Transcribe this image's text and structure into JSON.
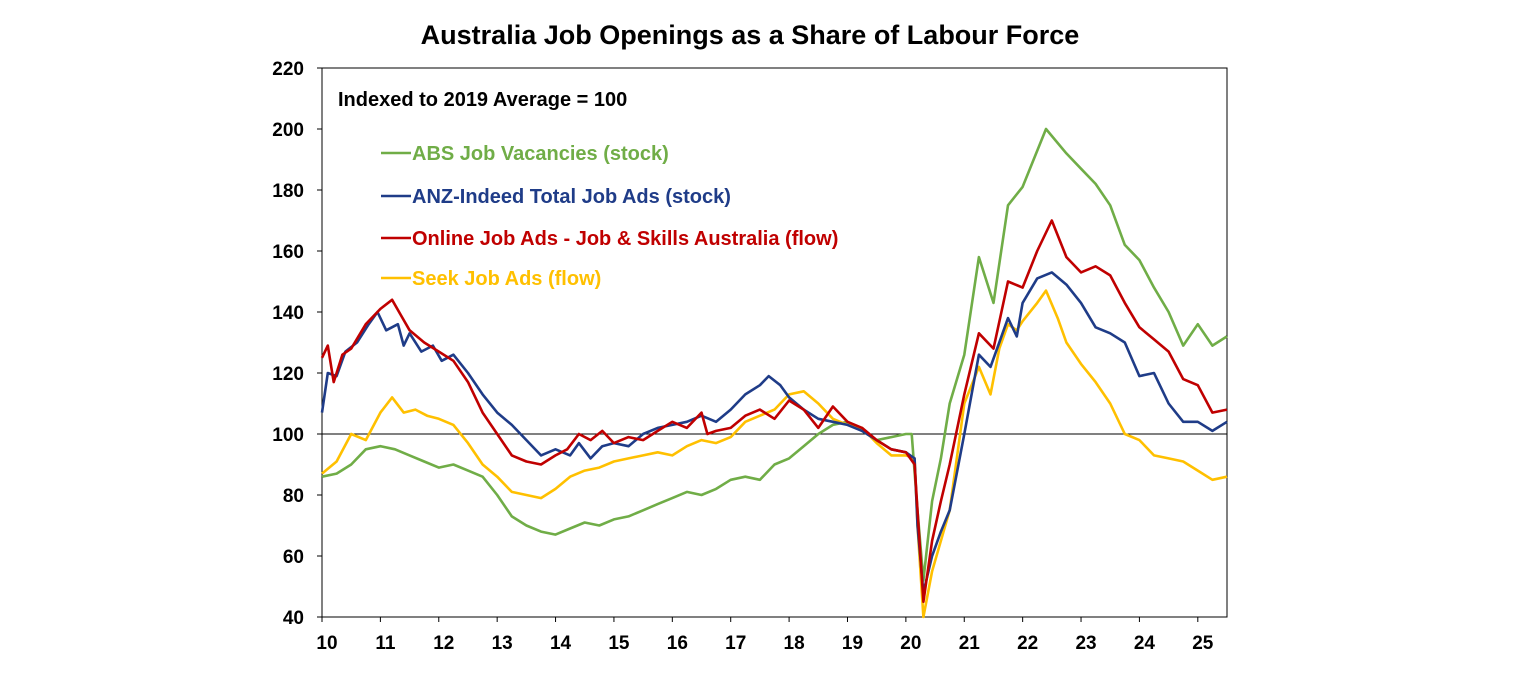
{
  "chart_data": {
    "type": "line",
    "title": "Australia Job Openings as a Share of Labour Force",
    "subtitle": "Indexed to 2019 Average = 100",
    "xlabel": "",
    "ylabel": "",
    "xlim": [
      10,
      25.5
    ],
    "ylim": [
      40,
      220
    ],
    "x_ticks": [
      "10",
      "11",
      "12",
      "13",
      "14",
      "15",
      "16",
      "17",
      "18",
      "19",
      "20",
      "21",
      "22",
      "23",
      "24",
      "25"
    ],
    "y_ticks": [
      "40",
      "60",
      "80",
      "100",
      "120",
      "140",
      "160",
      "180",
      "200",
      "220"
    ],
    "reference_line": 100,
    "grid": false,
    "legend_position": "top-left inside",
    "series": [
      {
        "name": "ABS Job Vacancies (stock)",
        "color": "#70ad47",
        "points": [
          [
            10.0,
            86
          ],
          [
            10.25,
            87
          ],
          [
            10.5,
            90
          ],
          [
            10.75,
            95
          ],
          [
            11.0,
            96
          ],
          [
            11.25,
            95
          ],
          [
            11.5,
            93
          ],
          [
            11.75,
            91
          ],
          [
            12.0,
            89
          ],
          [
            12.25,
            90
          ],
          [
            12.5,
            88
          ],
          [
            12.75,
            86
          ],
          [
            13.0,
            80
          ],
          [
            13.25,
            73
          ],
          [
            13.5,
            70
          ],
          [
            13.75,
            68
          ],
          [
            14.0,
            67
          ],
          [
            14.25,
            69
          ],
          [
            14.5,
            71
          ],
          [
            14.75,
            70
          ],
          [
            15.0,
            72
          ],
          [
            15.25,
            73
          ],
          [
            15.5,
            75
          ],
          [
            15.75,
            77
          ],
          [
            16.0,
            79
          ],
          [
            16.25,
            81
          ],
          [
            16.5,
            80
          ],
          [
            16.75,
            82
          ],
          [
            17.0,
            85
          ],
          [
            17.25,
            86
          ],
          [
            17.5,
            85
          ],
          [
            17.75,
            90
          ],
          [
            18.0,
            92
          ],
          [
            18.25,
            96
          ],
          [
            18.5,
            100
          ],
          [
            18.75,
            103
          ],
          [
            19.0,
            104
          ],
          [
            19.25,
            101
          ],
          [
            19.5,
            98
          ],
          [
            19.75,
            99
          ],
          [
            20.0,
            100
          ],
          [
            20.1,
            100
          ],
          [
            20.2,
            75
          ],
          [
            20.3,
            52
          ],
          [
            20.45,
            78
          ],
          [
            20.6,
            92
          ],
          [
            20.75,
            110
          ],
          [
            21.0,
            126
          ],
          [
            21.25,
            158
          ],
          [
            21.5,
            143
          ],
          [
            21.75,
            175
          ],
          [
            22.0,
            181
          ],
          [
            22.4,
            200
          ],
          [
            22.75,
            192
          ],
          [
            23.0,
            187
          ],
          [
            23.25,
            182
          ],
          [
            23.5,
            175
          ],
          [
            23.75,
            162
          ],
          [
            24.0,
            157
          ],
          [
            24.25,
            148
          ],
          [
            24.5,
            140
          ],
          [
            24.75,
            129
          ],
          [
            25.0,
            136
          ],
          [
            25.25,
            129
          ],
          [
            25.5,
            132
          ]
        ]
      },
      {
        "name": "ANZ-Indeed Total Job Ads (stock)",
        "color": "#1f3c88",
        "points": [
          [
            10.0,
            107
          ],
          [
            10.1,
            120
          ],
          [
            10.25,
            119
          ],
          [
            10.4,
            127
          ],
          [
            10.6,
            130
          ],
          [
            10.8,
            136
          ],
          [
            10.95,
            140
          ],
          [
            11.1,
            134
          ],
          [
            11.3,
            136
          ],
          [
            11.4,
            129
          ],
          [
            11.5,
            133
          ],
          [
            11.7,
            127
          ],
          [
            11.9,
            129
          ],
          [
            12.05,
            124
          ],
          [
            12.25,
            126
          ],
          [
            12.5,
            120
          ],
          [
            12.75,
            113
          ],
          [
            13.0,
            107
          ],
          [
            13.25,
            103
          ],
          [
            13.5,
            98
          ],
          [
            13.75,
            93
          ],
          [
            14.0,
            95
          ],
          [
            14.25,
            93
          ],
          [
            14.4,
            97
          ],
          [
            14.6,
            92
          ],
          [
            14.8,
            96
          ],
          [
            15.0,
            97
          ],
          [
            15.25,
            96
          ],
          [
            15.5,
            100
          ],
          [
            15.75,
            102
          ],
          [
            16.0,
            103
          ],
          [
            16.25,
            104
          ],
          [
            16.5,
            106
          ],
          [
            16.75,
            104
          ],
          [
            17.0,
            108
          ],
          [
            17.25,
            113
          ],
          [
            17.5,
            116
          ],
          [
            17.65,
            119
          ],
          [
            17.85,
            116
          ],
          [
            18.0,
            112
          ],
          [
            18.25,
            108
          ],
          [
            18.5,
            105
          ],
          [
            18.75,
            104
          ],
          [
            19.0,
            103
          ],
          [
            19.25,
            101
          ],
          [
            19.5,
            98
          ],
          [
            19.75,
            95
          ],
          [
            20.0,
            94
          ],
          [
            20.15,
            92
          ],
          [
            20.2,
            70
          ],
          [
            20.3,
            48
          ],
          [
            20.45,
            60
          ],
          [
            20.6,
            68
          ],
          [
            20.75,
            75
          ],
          [
            21.0,
            100
          ],
          [
            21.25,
            126
          ],
          [
            21.45,
            122
          ],
          [
            21.6,
            130
          ],
          [
            21.75,
            138
          ],
          [
            21.9,
            132
          ],
          [
            22.0,
            143
          ],
          [
            22.25,
            151
          ],
          [
            22.5,
            153
          ],
          [
            22.75,
            149
          ],
          [
            23.0,
            143
          ],
          [
            23.25,
            135
          ],
          [
            23.5,
            133
          ],
          [
            23.75,
            130
          ],
          [
            24.0,
            119
          ],
          [
            24.25,
            120
          ],
          [
            24.5,
            110
          ],
          [
            24.75,
            104
          ],
          [
            25.0,
            104
          ],
          [
            25.25,
            101
          ],
          [
            25.5,
            104
          ]
        ]
      },
      {
        "name": "Online Job Ads - Job & Skills Australia (flow)",
        "color": "#c00000",
        "points": [
          [
            10.0,
            125
          ],
          [
            10.1,
            129
          ],
          [
            10.2,
            117
          ],
          [
            10.35,
            126
          ],
          [
            10.5,
            128
          ],
          [
            10.75,
            136
          ],
          [
            11.0,
            141
          ],
          [
            11.2,
            144
          ],
          [
            11.35,
            139
          ],
          [
            11.5,
            134
          ],
          [
            11.75,
            130
          ],
          [
            12.0,
            127
          ],
          [
            12.25,
            124
          ],
          [
            12.5,
            117
          ],
          [
            12.75,
            107
          ],
          [
            13.0,
            100
          ],
          [
            13.25,
            93
          ],
          [
            13.5,
            91
          ],
          [
            13.75,
            90
          ],
          [
            14.0,
            93
          ],
          [
            14.2,
            95
          ],
          [
            14.4,
            100
          ],
          [
            14.6,
            98
          ],
          [
            14.8,
            101
          ],
          [
            15.0,
            97
          ],
          [
            15.25,
            99
          ],
          [
            15.5,
            98
          ],
          [
            15.75,
            101
          ],
          [
            16.0,
            104
          ],
          [
            16.25,
            102
          ],
          [
            16.5,
            107
          ],
          [
            16.6,
            100
          ],
          [
            16.75,
            101
          ],
          [
            17.0,
            102
          ],
          [
            17.25,
            106
          ],
          [
            17.5,
            108
          ],
          [
            17.75,
            105
          ],
          [
            18.0,
            111
          ],
          [
            18.25,
            108
          ],
          [
            18.5,
            102
          ],
          [
            18.75,
            109
          ],
          [
            19.0,
            104
          ],
          [
            19.25,
            102
          ],
          [
            19.5,
            98
          ],
          [
            19.75,
            95
          ],
          [
            20.0,
            94
          ],
          [
            20.15,
            90
          ],
          [
            20.2,
            75
          ],
          [
            20.3,
            45
          ],
          [
            20.45,
            65
          ],
          [
            20.6,
            78
          ],
          [
            20.75,
            90
          ],
          [
            21.0,
            113
          ],
          [
            21.25,
            133
          ],
          [
            21.5,
            128
          ],
          [
            21.75,
            150
          ],
          [
            22.0,
            148
          ],
          [
            22.25,
            160
          ],
          [
            22.5,
            170
          ],
          [
            22.75,
            158
          ],
          [
            23.0,
            153
          ],
          [
            23.25,
            155
          ],
          [
            23.5,
            152
          ],
          [
            23.75,
            143
          ],
          [
            24.0,
            135
          ],
          [
            24.25,
            131
          ],
          [
            24.5,
            127
          ],
          [
            24.75,
            118
          ],
          [
            25.0,
            116
          ],
          [
            25.25,
            107
          ],
          [
            25.5,
            108
          ]
        ]
      },
      {
        "name": "Seek Job Ads (flow)",
        "color": "#ffc000",
        "points": [
          [
            10.0,
            87
          ],
          [
            10.25,
            91
          ],
          [
            10.5,
            100
          ],
          [
            10.75,
            98
          ],
          [
            11.0,
            107
          ],
          [
            11.2,
            112
          ],
          [
            11.4,
            107
          ],
          [
            11.6,
            108
          ],
          [
            11.8,
            106
          ],
          [
            12.0,
            105
          ],
          [
            12.25,
            103
          ],
          [
            12.5,
            97
          ],
          [
            12.75,
            90
          ],
          [
            13.0,
            86
          ],
          [
            13.25,
            81
          ],
          [
            13.5,
            80
          ],
          [
            13.75,
            79
          ],
          [
            14.0,
            82
          ],
          [
            14.25,
            86
          ],
          [
            14.5,
            88
          ],
          [
            14.75,
            89
          ],
          [
            15.0,
            91
          ],
          [
            15.25,
            92
          ],
          [
            15.5,
            93
          ],
          [
            15.75,
            94
          ],
          [
            16.0,
            93
          ],
          [
            16.25,
            96
          ],
          [
            16.5,
            98
          ],
          [
            16.75,
            97
          ],
          [
            17.0,
            99
          ],
          [
            17.25,
            104
          ],
          [
            17.5,
            106
          ],
          [
            17.75,
            108
          ],
          [
            18.0,
            113
          ],
          [
            18.25,
            114
          ],
          [
            18.5,
            110
          ],
          [
            18.75,
            105
          ],
          [
            19.0,
            103
          ],
          [
            19.25,
            102
          ],
          [
            19.5,
            97
          ],
          [
            19.75,
            93
          ],
          [
            20.0,
            93
          ],
          [
            20.15,
            92
          ],
          [
            20.2,
            70
          ],
          [
            20.3,
            40
          ],
          [
            20.45,
            55
          ],
          [
            20.6,
            65
          ],
          [
            20.75,
            75
          ],
          [
            21.0,
            110
          ],
          [
            21.25,
            122
          ],
          [
            21.45,
            113
          ],
          [
            21.6,
            128
          ],
          [
            21.75,
            136
          ],
          [
            21.9,
            134
          ],
          [
            22.0,
            137
          ],
          [
            22.25,
            143
          ],
          [
            22.4,
            147
          ],
          [
            22.6,
            138
          ],
          [
            22.75,
            130
          ],
          [
            23.0,
            123
          ],
          [
            23.25,
            117
          ],
          [
            23.5,
            110
          ],
          [
            23.75,
            100
          ],
          [
            24.0,
            98
          ],
          [
            24.25,
            93
          ],
          [
            24.5,
            92
          ],
          [
            24.75,
            91
          ],
          [
            25.0,
            88
          ],
          [
            25.25,
            85
          ],
          [
            25.5,
            86
          ]
        ]
      }
    ]
  }
}
